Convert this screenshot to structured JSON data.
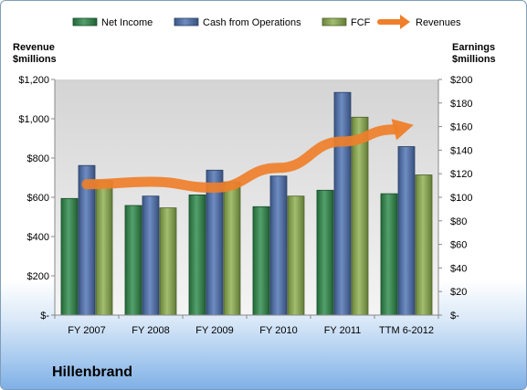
{
  "chart_data": {
    "type": "bar",
    "title": "Hillenbrand",
    "categories": [
      "FY 2007",
      "FY 2008",
      "FY 2009",
      "FY 2010",
      "FY 2011",
      "TTM 6-2012"
    ],
    "left_axis_label": [
      "Revenue",
      "$millions"
    ],
    "right_axis_label": [
      "Earnings",
      "$millions"
    ],
    "left_ylim": [
      0,
      1200
    ],
    "right_ylim": [
      0,
      200
    ],
    "left_ticks": [
      {
        "value": 0,
        "label": "$-"
      },
      {
        "value": 200,
        "label": "$200"
      },
      {
        "value": 400,
        "label": "$400"
      },
      {
        "value": 600,
        "label": "$600"
      },
      {
        "value": 800,
        "label": "$800"
      },
      {
        "value": 1000,
        "label": "$1,000"
      },
      {
        "value": 1200,
        "label": "$1,200"
      }
    ],
    "right_ticks": [
      {
        "value": 0,
        "label": "$-"
      },
      {
        "value": 20,
        "label": "$20"
      },
      {
        "value": 40,
        "label": "$40"
      },
      {
        "value": 60,
        "label": "$60"
      },
      {
        "value": 80,
        "label": "$80"
      },
      {
        "value": 100,
        "label": "$100"
      },
      {
        "value": 120,
        "label": "$120"
      },
      {
        "value": 140,
        "label": "$140"
      },
      {
        "value": 160,
        "label": "$160"
      },
      {
        "value": 180,
        "label": "$180"
      },
      {
        "value": 200,
        "label": "$200"
      }
    ],
    "series": [
      {
        "name": "Net Income",
        "type": "bar",
        "axis": "right",
        "color": "#2e8b4a",
        "values": [
          99,
          93,
          102,
          92,
          106,
          103
        ]
      },
      {
        "name": "Cash from Operations",
        "type": "bar",
        "axis": "right",
        "color": "#4f73b4",
        "values": [
          127,
          101,
          123,
          118,
          189,
          143
        ]
      },
      {
        "name": "FCF",
        "type": "bar",
        "axis": "right",
        "color": "#8db04f",
        "values": [
          114,
          91,
          113,
          101,
          168,
          119
        ]
      },
      {
        "name": "Revenues",
        "type": "line",
        "axis": "left",
        "color": "#ef7f2a",
        "values": [
          666,
          679,
          649,
          750,
          884,
          960
        ]
      }
    ],
    "grid": false,
    "legend": "top"
  }
}
